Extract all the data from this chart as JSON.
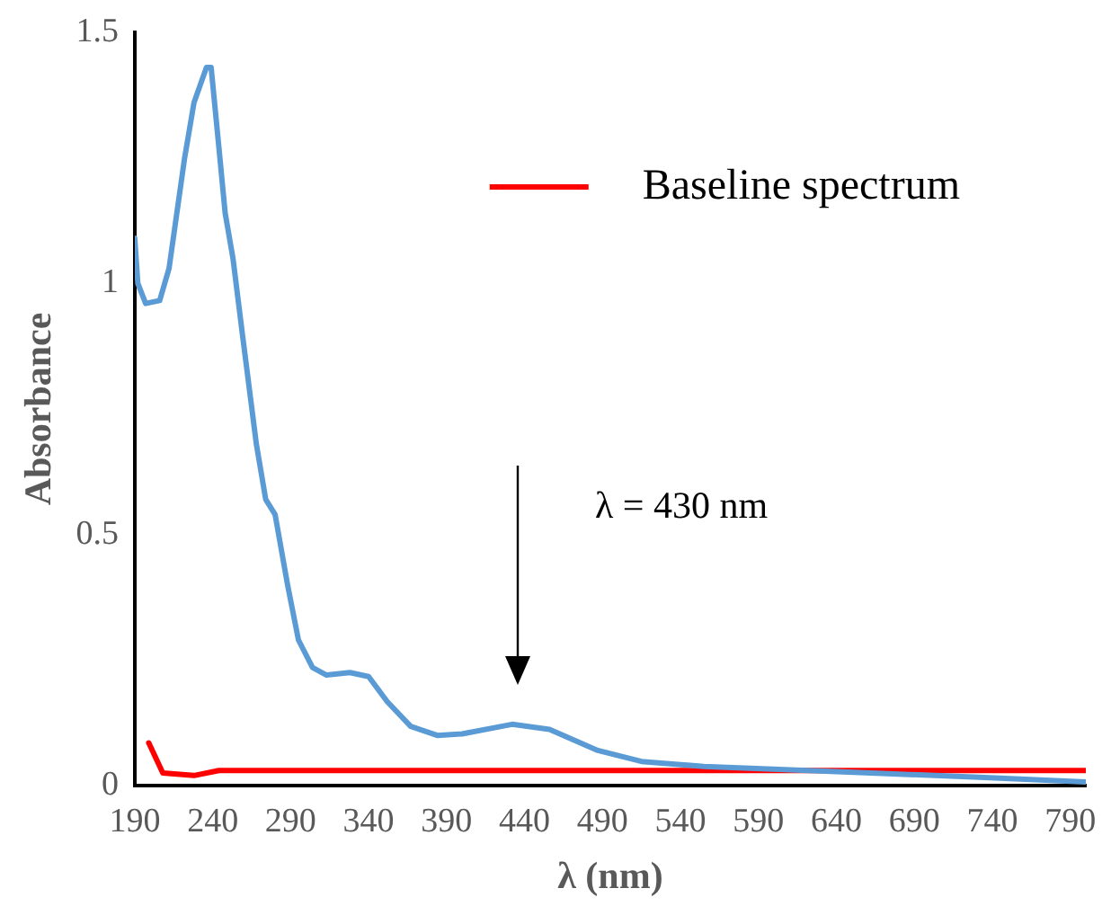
{
  "chart_data": {
    "type": "line",
    "xlabel": "λ (nm)",
    "ylabel": "Absorbance",
    "xlim": [
      190,
      800
    ],
    "xticks": [
      190,
      240,
      290,
      340,
      390,
      440,
      490,
      540,
      590,
      640,
      690,
      740,
      790
    ],
    "ylim": [
      0,
      1.5
    ],
    "yticks": [
      0,
      0.5,
      1,
      1.5
    ],
    "grid": false,
    "legend": "top right",
    "marker": "none",
    "line_style": "solid",
    "annotations": [
      "λ = 430 nm"
    ],
    "series": [
      {
        "color": "#5b9bd5",
        "x": [
          190,
          192,
          197,
          206,
          212,
          222,
          228,
          236,
          239,
          244,
          248,
          253,
          259,
          268,
          274,
          280,
          288,
          295,
          304,
          313,
          328,
          340,
          352,
          367,
          384,
          400,
          432,
          456,
          487,
          515,
          555,
          655,
          735,
          800
        ],
        "values": [
          1.09,
          1.0,
          0.96,
          0.966,
          1.03,
          1.25,
          1.36,
          1.43,
          1.43,
          1.27,
          1.14,
          1.05,
          0.9,
          0.68,
          0.57,
          0.54,
          0.4,
          0.29,
          0.235,
          0.22,
          0.225,
          0.217,
          0.167,
          0.118,
          0.1,
          0.103,
          0.122,
          0.112,
          0.07,
          0.048,
          0.038,
          0.026,
          0.016,
          0.007
        ]
      },
      {
        "name": "Baseline spectrum",
        "color": "#ff0000",
        "x": [
          199,
          208,
          228,
          244,
          300,
          400,
          500,
          600,
          700,
          800
        ],
        "values": [
          0.085,
          0.025,
          0.02,
          0.03,
          0.03,
          0.03,
          0.03,
          0.03,
          0.03,
          0.03
        ]
      }
    ]
  }
}
